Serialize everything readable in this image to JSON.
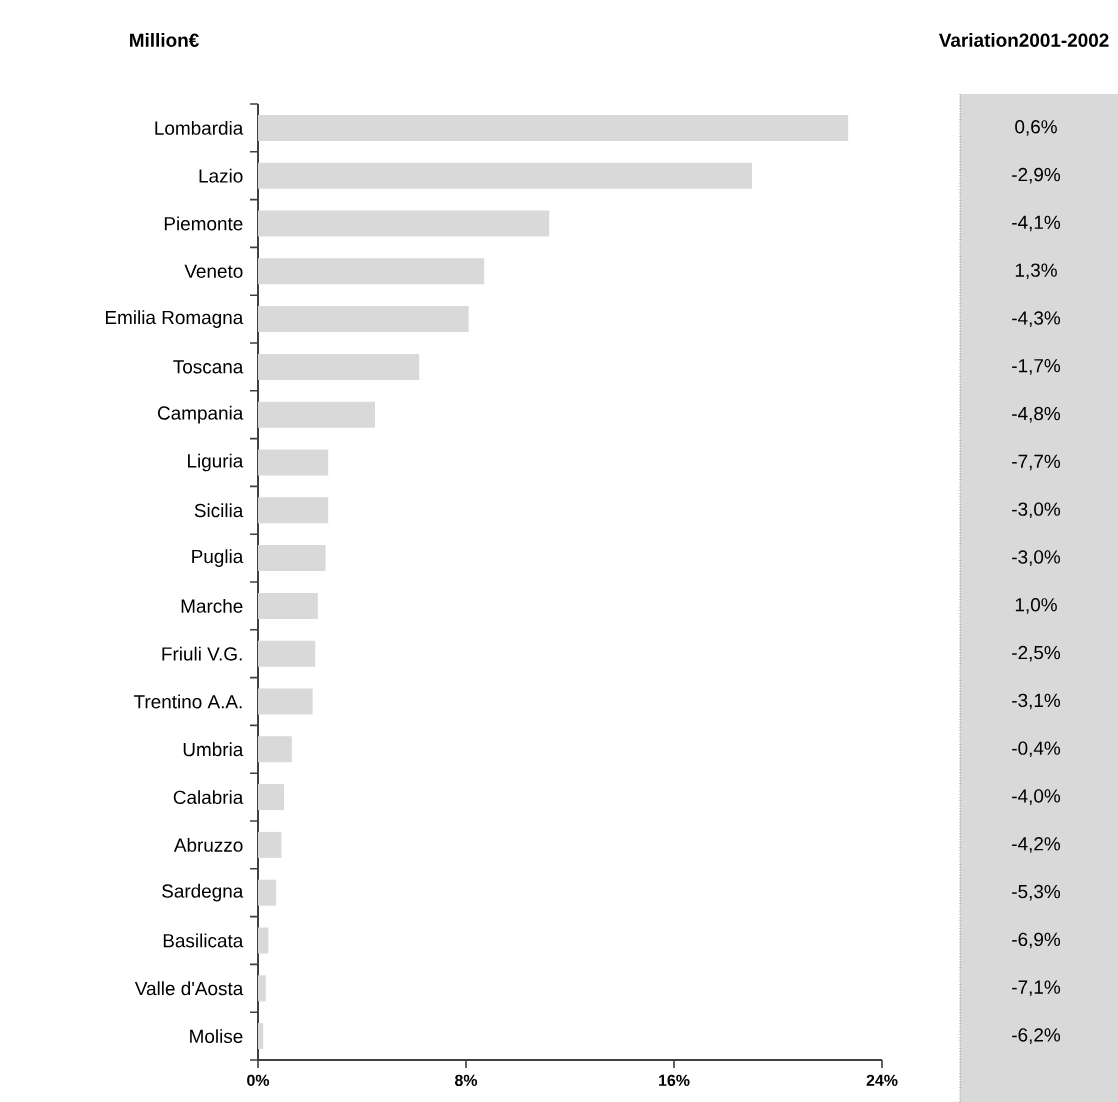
{
  "chart_data": {
    "type": "bar",
    "orientation": "horizontal",
    "title": "Million€",
    "color": "#d9d9d9",
    "categories": [
      "Lombardia",
      "Lazio",
      "Piemonte",
      "Veneto",
      "Emilia Romagna",
      "Toscana",
      "Campania",
      "Liguria",
      "Sicilia",
      "Puglia",
      "Marche",
      "Friuli V.G.",
      "Trentino A.A.",
      "Umbria",
      "Calabria",
      "Abruzzo",
      "Sardegna",
      "Basilicata",
      "Valle d'Aosta",
      "Molise"
    ],
    "values": [
      22.7,
      19.0,
      11.2,
      8.7,
      8.1,
      6.2,
      4.5,
      2.7,
      2.7,
      2.6,
      2.3,
      2.2,
      2.1,
      1.3,
      1.0,
      0.9,
      0.7,
      0.4,
      0.3,
      0.2
    ],
    "xlim": [
      0,
      24
    ],
    "xticks": [
      {
        "value": 0,
        "label": "0%"
      },
      {
        "value": 8,
        "label": "8%"
      },
      {
        "value": 16,
        "label": "16%"
      },
      {
        "value": 24,
        "label": "24%"
      }
    ],
    "grid": false,
    "annotations": [
      "Variation2001-2002",
      "0,6%",
      "-2,9%",
      "-4,1%",
      "1,3%",
      "-4,3%",
      "-1,7%",
      "-4,8%",
      "-7,7%",
      "-3,0%",
      "-3,0%",
      "1,0%",
      "-2,5%",
      "-3,1%",
      "-0,4%",
      "-4,0%",
      "-4,2%",
      "-5,3%",
      "-6,9%",
      "-7,1%",
      "-6,2%"
    ]
  }
}
